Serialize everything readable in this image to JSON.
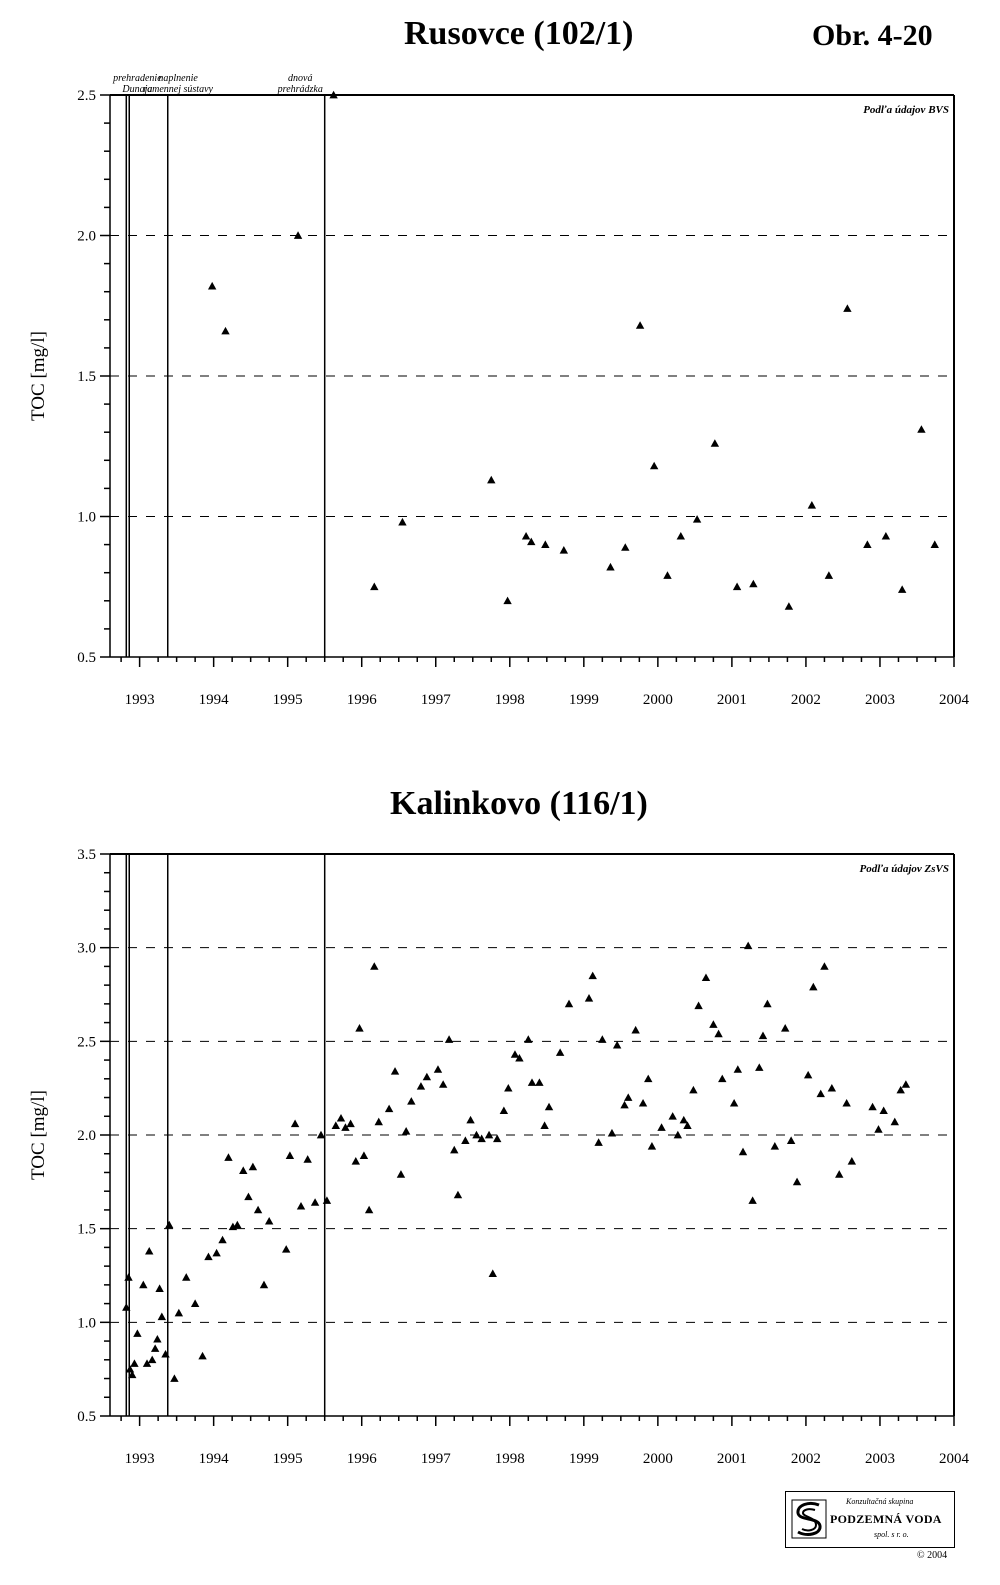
{
  "figure_label": "Obr. 4-20",
  "annotations": [
    {
      "line1": "prehradenie",
      "line2": "Dunaja"
    },
    {
      "line1": "naplnenie",
      "line2": "ramennej sústavy"
    },
    {
      "line1": "dnová",
      "line2": "prehrádzka"
    }
  ],
  "logo": {
    "top_text": "Konzultačná skupina",
    "main_text": "PODZEMNÁ VODA",
    "bottom_text": "spol. s r. o.",
    "icon": "spiral-s-logo-icon",
    "copyright": "© 2004"
  },
  "chart_data": [
    {
      "type": "scatter",
      "title": "Rusovce (102/1)",
      "source": "Podľa údajov BVS",
      "ylabel": "TOC [mg/l]",
      "xlabel": "",
      "xlim": [
        1992.6,
        2004
      ],
      "ylim": [
        0.5,
        2.5
      ],
      "ytick_step": 0.5,
      "yticks": [
        "0.5",
        "1.0",
        "1.5",
        "2.0",
        "2.5"
      ],
      "xticks": [
        "1993",
        "1994",
        "1995",
        "1996",
        "1997",
        "1998",
        "1999",
        "2000",
        "2001",
        "2002",
        "2003",
        "2004"
      ],
      "grid": "dashed-horizontal",
      "event_lines": [
        1992.82,
        1992.86,
        1993.38,
        1995.5
      ],
      "x": [
        1993.98,
        1994.16,
        1995.14,
        1995.62,
        1996.17,
        1996.55,
        1997.75,
        1997.97,
        1998.22,
        1998.29,
        1998.48,
        1998.73,
        1999.36,
        1999.56,
        1999.76,
        1999.95,
        2000.13,
        2000.31,
        2000.53,
        2000.77,
        2001.07,
        2001.29,
        2001.77,
        2002.08,
        2002.31,
        2002.56,
        2002.83,
        2003.08,
        2003.3,
        2003.56,
        2003.74
      ],
      "values": [
        1.82,
        1.66,
        2.0,
        2.5,
        0.75,
        0.98,
        1.13,
        0.7,
        0.93,
        0.91,
        0.9,
        0.88,
        0.82,
        0.89,
        1.68,
        1.18,
        0.79,
        0.93,
        0.99,
        1.26,
        0.75,
        0.76,
        0.68,
        1.04,
        0.79,
        1.74,
        0.9,
        0.93,
        0.74,
        1.31,
        0.9
      ]
    },
    {
      "type": "scatter",
      "title": "Kalinkovo (116/1)",
      "source": "Podľa údajov ZsVS",
      "ylabel": "TOC [mg/l]",
      "xlabel": "",
      "xlim": [
        1992.6,
        2004
      ],
      "ylim": [
        0.5,
        3.5
      ],
      "ytick_step": 0.5,
      "yticks": [
        "0.5",
        "1.0",
        "1.5",
        "2.0",
        "2.5",
        "3.0",
        "3.5"
      ],
      "xticks": [
        "1993",
        "1994",
        "1995",
        "1996",
        "1997",
        "1998",
        "1999",
        "2000",
        "2001",
        "2002",
        "2003",
        "2004"
      ],
      "grid": "dashed-horizontal",
      "event_lines": [
        1992.82,
        1992.86,
        1993.38,
        1995.5
      ],
      "x": [
        1992.82,
        1992.85,
        1992.87,
        1992.9,
        1992.93,
        1992.97,
        1993.05,
        1993.1,
        1993.13,
        1993.17,
        1993.21,
        1993.24,
        1993.27,
        1993.3,
        1993.35,
        1993.4,
        1993.47,
        1993.53,
        1993.63,
        1993.75,
        1993.85,
        1993.93,
        1994.04,
        1994.12,
        1994.2,
        1994.26,
        1994.32,
        1994.4,
        1994.47,
        1994.53,
        1994.6,
        1994.68,
        1994.75,
        1994.98,
        1995.03,
        1995.1,
        1995.18,
        1995.27,
        1995.37,
        1995.45,
        1995.53,
        1995.65,
        1995.72,
        1995.78,
        1995.85,
        1995.92,
        1995.97,
        1996.03,
        1996.1,
        1996.17,
        1996.23,
        1996.37,
        1996.45,
        1996.53,
        1996.6,
        1996.67,
        1996.8,
        1996.88,
        1997.03,
        1997.1,
        1997.18,
        1997.25,
        1997.3,
        1997.4,
        1997.47,
        1997.55,
        1997.62,
        1997.72,
        1997.77,
        1997.83,
        1997.92,
        1997.98,
        1998.07,
        1998.13,
        1998.25,
        1998.3,
        1998.4,
        1998.47,
        1998.53,
        1998.68,
        1998.8,
        1999.07,
        1999.12,
        1999.2,
        1999.25,
        1999.38,
        1999.45,
        1999.55,
        1999.6,
        1999.7,
        1999.8,
        1999.87,
        1999.92,
        2000.05,
        2000.2,
        2000.27,
        2000.35,
        2000.4,
        2000.48,
        2000.55,
        2000.65,
        2000.75,
        2000.82,
        2000.87,
        2001.03,
        2001.08,
        2001.15,
        2001.22,
        2001.28,
        2001.37,
        2001.42,
        2001.48,
        2001.58,
        2001.72,
        2001.8,
        2001.88,
        2002.03,
        2002.1,
        2002.2,
        2002.25,
        2002.35,
        2002.45,
        2002.55,
        2002.62,
        2002.9,
        2002.98,
        2003.05,
        2003.2,
        2003.28,
        2003.35,
        2003.42,
        2003.5,
        2003.58,
        2003.65
      ]
    }
  ]
}
